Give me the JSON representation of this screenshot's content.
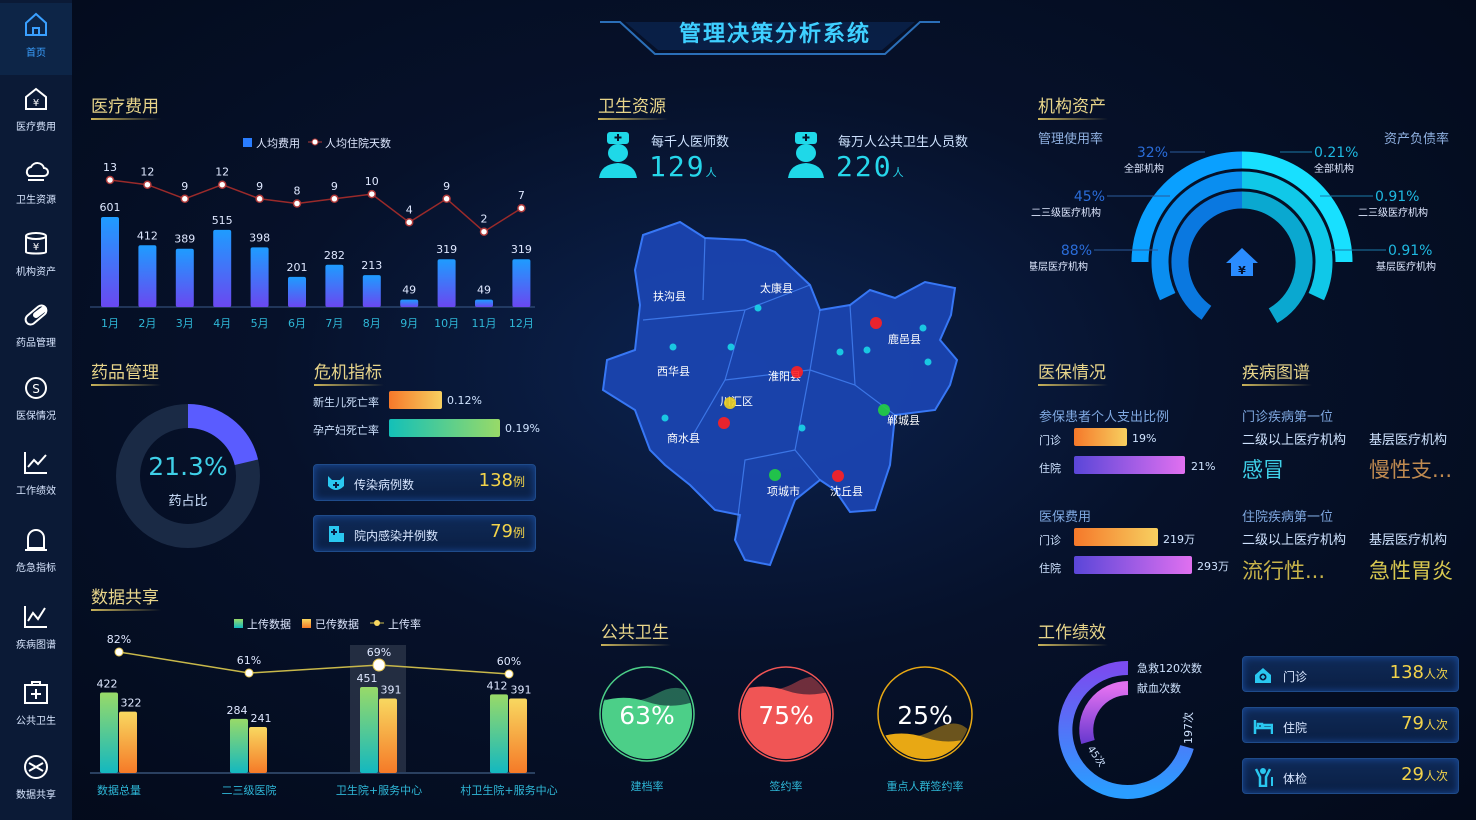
{
  "header": {
    "title": "管理决策分析系统"
  },
  "sidebar": {
    "items": [
      {
        "label": "首页",
        "icon": "home-icon"
      },
      {
        "label": "医疗费用",
        "icon": "money-house-icon"
      },
      {
        "label": "卫生资源",
        "icon": "cloud-icon"
      },
      {
        "label": "机构资产",
        "icon": "database-yen-icon"
      },
      {
        "label": "药品管理",
        "icon": "pill-icon"
      },
      {
        "label": "医保情况",
        "icon": "insurance-icon"
      },
      {
        "label": "工作绩效",
        "icon": "chart-line-icon"
      },
      {
        "label": "危急指标",
        "icon": "bell-icon"
      },
      {
        "label": "疾病图谱",
        "icon": "graph-icon"
      },
      {
        "label": "公共卫生",
        "icon": "plus-box-icon"
      },
      {
        "label": "数据共享",
        "icon": "share-icon"
      }
    ]
  },
  "panels": {
    "medical_cost": {
      "title": "医疗费用"
    },
    "drug": {
      "title": "药品管理",
      "percent": "21.3%",
      "label": "药占比",
      "value": 21.3
    },
    "crisis": {
      "title": "危机指标",
      "rates": [
        {
          "label": "新生儿死亡率",
          "value": "0.12%"
        },
        {
          "label": "孕产妇死亡率",
          "value": "0.19%"
        }
      ],
      "cards": [
        {
          "label": "传染病例数",
          "value": "138",
          "unit": "例"
        },
        {
          "label": "院内感染并例数",
          "value": "79",
          "unit": "例"
        }
      ]
    },
    "data_share": {
      "title": "数据共享"
    },
    "health_resources": {
      "title": "卫生资源",
      "stats": [
        {
          "label": "每千人医师数",
          "value": "129",
          "unit": "人"
        },
        {
          "label": "每万人公共卫生人员数",
          "value": "220",
          "unit": "人"
        }
      ],
      "map_labels": [
        "扶沟县",
        "太康县",
        "西华县",
        "淮阳县",
        "川汇区",
        "鹿邑县",
        "商水县",
        "郸城县",
        "项城市",
        "沈丘县"
      ]
    },
    "public_health": {
      "title": "公共卫生",
      "items": [
        {
          "label": "建档率",
          "value": "63%",
          "fraction": 0.63,
          "color": "#4ccf88"
        },
        {
          "label": "签约率",
          "value": "75%",
          "fraction": 0.75,
          "color": "#f05555"
        },
        {
          "label": "重点人群签约率",
          "value": "25%",
          "fraction": 0.25,
          "color": "#e8a814"
        }
      ]
    },
    "assets": {
      "title": "机构资产",
      "left_title": "管理使用率",
      "right_title": "资产负债率",
      "left": [
        {
          "value": "32%",
          "label": "全部机构"
        },
        {
          "value": "45%",
          "label": "二三级医疗机构"
        },
        {
          "value": "88%",
          "label": "基层医疗机构"
        }
      ],
      "right": [
        {
          "value": "0.21%",
          "label": "全部机构"
        },
        {
          "value": "0.91%",
          "label": "二三级医疗机构"
        },
        {
          "value": "0.91%",
          "label": "基层医疗机构"
        }
      ]
    },
    "insurance": {
      "title": "医保情况",
      "ratio_title": "参保患者个人支出比例",
      "ratio": [
        {
          "label": "门诊",
          "value": "19%"
        },
        {
          "label": "住院",
          "value": "21%"
        }
      ],
      "cost_title": "医保费用",
      "cost": [
        {
          "label": "门诊",
          "value": "219万"
        },
        {
          "label": "住院",
          "value": "293万"
        }
      ]
    },
    "disease": {
      "title": "疾病图谱",
      "outpatient_title": "门诊疾病第一位",
      "inpatient_title": "住院疾病第一位",
      "col1": "二级以上医疗机构",
      "col2": "基层医疗机构",
      "outpatient": [
        "感冒",
        "慢性支..."
      ],
      "inpatient": [
        "流行性...",
        "急性胃炎"
      ]
    },
    "performance": {
      "title": "工作绩效",
      "legend": [
        "急救120次数",
        "献血次数"
      ],
      "ring_labels": [
        "197次",
        "45次"
      ],
      "cards": [
        {
          "label": "门诊",
          "value": "138",
          "unit": "人次"
        },
        {
          "label": "住院",
          "value": "79",
          "unit": "人次"
        },
        {
          "label": "体检",
          "value": "29",
          "unit": "人次"
        }
      ]
    }
  },
  "chart_data": [
    {
      "type": "bar",
      "id": "medical_cost",
      "categories": [
        "1月",
        "2月",
        "3月",
        "4月",
        "5月",
        "6月",
        "7月",
        "8月",
        "9月",
        "10月",
        "11月",
        "12月"
      ],
      "series": [
        {
          "name": "人均费用",
          "type": "bar",
          "values": [
            601,
            412,
            389,
            515,
            398,
            201,
            282,
            213,
            49,
            319,
            49,
            319
          ]
        },
        {
          "name": "人均住院天数",
          "type": "line",
          "values": [
            13,
            12,
            9,
            12,
            9,
            8,
            9,
            10,
            4,
            9,
            2,
            7
          ]
        }
      ],
      "legend": "top-center",
      "colors": [
        "#2a9dff",
        "#6a4bff",
        "#b03a3a"
      ]
    },
    {
      "type": "bar",
      "id": "data_share",
      "categories": [
        "数据总量",
        "二三级医院",
        "卫生院+服务中心",
        "村卫生院+服务中心"
      ],
      "series": [
        {
          "name": "上传数据",
          "type": "bar",
          "values": [
            422,
            284,
            451,
            412
          ]
        },
        {
          "name": "已传数据",
          "type": "bar",
          "values": [
            322,
            241,
            391,
            391
          ]
        },
        {
          "name": "上传率",
          "type": "line",
          "values": [
            "82%",
            "61%",
            "69%",
            "60%"
          ]
        }
      ],
      "legend": "top-center",
      "highlight": "卫生院+服务中心"
    }
  ]
}
